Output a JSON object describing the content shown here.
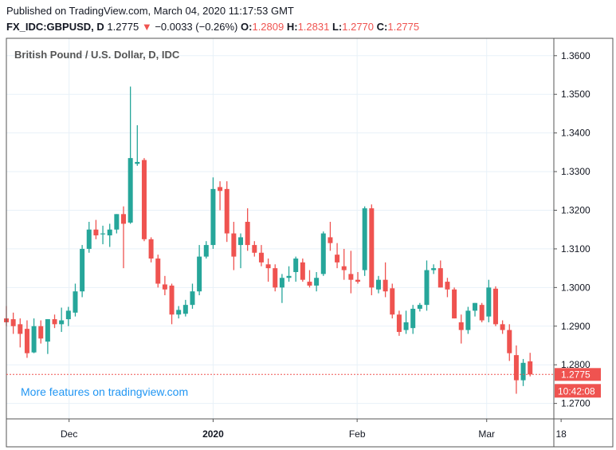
{
  "header": {
    "published": "Published on TradingView.com, March 04, 2020 11:17:53 GMT",
    "symbol": "FX_IDC:GBPUSD, D",
    "last": "1.2775",
    "arrow": "▼",
    "change": "−0.0033 (−0.26%)",
    "o_label": "O:",
    "o_value": "1.2809",
    "h_label": "H:",
    "h_value": "1.2831",
    "l_label": "L:",
    "l_value": "1.2770",
    "c_label": "C:",
    "c_value": "1.2775"
  },
  "chart_title": "British Pound / U.S. Dollar, D, IDC",
  "footer_link": "More features on tradingview.com",
  "colors": {
    "up": "#26a69a",
    "down": "#ef5350",
    "grid": "#e8f1f8",
    "axis": "#555555",
    "text": "#131722",
    "link": "#2196f3"
  },
  "chart_data": {
    "type": "candlestick",
    "title": "British Pound / U.S. Dollar, D, IDC",
    "ylim": [
      1.266,
      1.3645
    ],
    "xlim": [
      0,
      69.5
    ],
    "y_ticks": [
      "1.2700",
      "1.2800",
      "1.2900",
      "1.3000",
      "1.3100",
      "1.3200",
      "1.3300",
      "1.3400",
      "1.3500",
      "1.3600"
    ],
    "x_ticks": [
      {
        "label": "Dec",
        "x": 9.1
      },
      {
        "label": "2020",
        "x": 30.0
      },
      {
        "label": "Feb",
        "x": 50.9
      },
      {
        "label": "Mar",
        "x": 69.7
      },
      {
        "label": "18",
        "x": 80.5
      }
    ],
    "price_label": "1.2775",
    "countdown_label": "10:42:08",
    "last_price": 1.2775,
    "grid": true,
    "candles": [
      {
        "o": 1.292,
        "h": 1.2952,
        "l": 1.29,
        "c": 1.291
      },
      {
        "o": 1.2918,
        "h": 1.2935,
        "l": 1.288,
        "c": 1.29
      },
      {
        "o": 1.2905,
        "h": 1.292,
        "l": 1.2845,
        "c": 1.288
      },
      {
        "o": 1.2893,
        "h": 1.2915,
        "l": 1.2818,
        "c": 1.283
      },
      {
        "o": 1.2832,
        "h": 1.292,
        "l": 1.283,
        "c": 1.29
      },
      {
        "o": 1.29,
        "h": 1.2915,
        "l": 1.2855,
        "c": 1.2868
      },
      {
        "o": 1.286,
        "h": 1.2918,
        "l": 1.2828,
        "c": 1.2918
      },
      {
        "o": 1.2918,
        "h": 1.293,
        "l": 1.2895,
        "c": 1.2905
      },
      {
        "o": 1.2905,
        "h": 1.2948,
        "l": 1.2885,
        "c": 1.2915
      },
      {
        "o": 1.2918,
        "h": 1.295,
        "l": 1.29,
        "c": 1.294
      },
      {
        "o": 1.2935,
        "h": 1.301,
        "l": 1.2925,
        "c": 1.299
      },
      {
        "o": 1.299,
        "h": 1.311,
        "l": 1.2975,
        "c": 1.31
      },
      {
        "o": 1.31,
        "h": 1.317,
        "l": 1.309,
        "c": 1.315
      },
      {
        "o": 1.315,
        "h": 1.3175,
        "l": 1.3125,
        "c": 1.3135
      },
      {
        "o": 1.3138,
        "h": 1.316,
        "l": 1.3112,
        "c": 1.314
      },
      {
        "o": 1.3135,
        "h": 1.3165,
        "l": 1.3105,
        "c": 1.315
      },
      {
        "o": 1.315,
        "h": 1.319,
        "l": 1.314,
        "c": 1.319
      },
      {
        "o": 1.319,
        "h": 1.321,
        "l": 1.305,
        "c": 1.3165
      },
      {
        "o": 1.3168,
        "h": 1.352,
        "l": 1.3165,
        "c": 1.3335
      },
      {
        "o": 1.332,
        "h": 1.342,
        "l": 1.3315,
        "c": 1.3325
      },
      {
        "o": 1.333,
        "h": 1.3335,
        "l": 1.312,
        "c": 1.3125
      },
      {
        "o": 1.3125,
        "h": 1.313,
        "l": 1.3065,
        "c": 1.3075
      },
      {
        "o": 1.3075,
        "h": 1.3085,
        "l": 1.3,
        "c": 1.301
      },
      {
        "o": 1.3008,
        "h": 1.303,
        "l": 1.298,
        "c": 1.2995
      },
      {
        "o": 1.3005,
        "h": 1.301,
        "l": 1.2905,
        "c": 1.293
      },
      {
        "o": 1.293,
        "h": 1.2952,
        "l": 1.292,
        "c": 1.2942
      },
      {
        "o": 1.2932,
        "h": 1.2968,
        "l": 1.2925,
        "c": 1.2955
      },
      {
        "o": 1.2955,
        "h": 1.301,
        "l": 1.2945,
        "c": 1.299
      },
      {
        "o": 1.299,
        "h": 1.311,
        "l": 1.298,
        "c": 1.308
      },
      {
        "o": 1.308,
        "h": 1.312,
        "l": 1.3075,
        "c": 1.311
      },
      {
        "o": 1.311,
        "h": 1.3285,
        "l": 1.31,
        "c": 1.3255
      },
      {
        "o": 1.326,
        "h": 1.3275,
        "l": 1.32,
        "c": 1.325
      },
      {
        "o": 1.3255,
        "h": 1.3275,
        "l": 1.3118,
        "c": 1.314
      },
      {
        "o": 1.314,
        "h": 1.317,
        "l": 1.3045,
        "c": 1.308
      },
      {
        "o": 1.311,
        "h": 1.314,
        "l": 1.305,
        "c": 1.313
      },
      {
        "o": 1.317,
        "h": 1.3205,
        "l": 1.3095,
        "c": 1.311
      },
      {
        "o": 1.311,
        "h": 1.312,
        "l": 1.308,
        "c": 1.309
      },
      {
        "o": 1.309,
        "h": 1.311,
        "l": 1.3055,
        "c": 1.3065
      },
      {
        "o": 1.306,
        "h": 1.3075,
        "l": 1.3015,
        "c": 1.305
      },
      {
        "o": 1.305,
        "h": 1.306,
        "l": 1.299,
        "c": 1.3
      },
      {
        "o": 1.3,
        "h": 1.3035,
        "l": 1.296,
        "c": 1.3025
      },
      {
        "o": 1.3025,
        "h": 1.3055,
        "l": 1.3015,
        "c": 1.303
      },
      {
        "o": 1.304,
        "h": 1.308,
        "l": 1.3015,
        "c": 1.3075
      },
      {
        "o": 1.3065,
        "h": 1.3075,
        "l": 1.3015,
        "c": 1.302
      },
      {
        "o": 1.3015,
        "h": 1.3045,
        "l": 1.3,
        "c": 1.3005
      },
      {
        "o": 1.3005,
        "h": 1.304,
        "l": 1.299,
        "c": 1.3025
      },
      {
        "o": 1.3035,
        "h": 1.3145,
        "l": 1.303,
        "c": 1.314
      },
      {
        "o": 1.313,
        "h": 1.317,
        "l": 1.3095,
        "c": 1.3115
      },
      {
        "o": 1.3085,
        "h": 1.3115,
        "l": 1.305,
        "c": 1.3065
      },
      {
        "o": 1.3055,
        "h": 1.31,
        "l": 1.302,
        "c": 1.3045
      },
      {
        "o": 1.3035,
        "h": 1.3095,
        "l": 1.2985,
        "c": 1.302
      },
      {
        "o": 1.302,
        "h": 1.304,
        "l": 1.301,
        "c": 1.3015
      },
      {
        "o": 1.3045,
        "h": 1.321,
        "l": 1.303,
        "c": 1.3205
      },
      {
        "o": 1.3205,
        "h": 1.3215,
        "l": 1.298,
        "c": 1.3
      },
      {
        "o": 1.2995,
        "h": 1.303,
        "l": 1.2985,
        "c": 1.302
      },
      {
        "o": 1.302,
        "h": 1.3065,
        "l": 1.2975,
        "c": 1.299
      },
      {
        "o": 1.2998,
        "h": 1.301,
        "l": 1.292,
        "c": 1.293
      },
      {
        "o": 1.293,
        "h": 1.294,
        "l": 1.2875,
        "c": 1.2885
      },
      {
        "o": 1.289,
        "h": 1.294,
        "l": 1.288,
        "c": 1.291
      },
      {
        "o": 1.2895,
        "h": 1.2955,
        "l": 1.288,
        "c": 1.2945
      },
      {
        "o": 1.2945,
        "h": 1.296,
        "l": 1.2938,
        "c": 1.2955
      },
      {
        "o": 1.2955,
        "h": 1.307,
        "l": 1.294,
        "c": 1.3045
      },
      {
        "o": 1.3045,
        "h": 1.306,
        "l": 1.3035,
        "c": 1.305
      },
      {
        "o": 1.305,
        "h": 1.307,
        "l": 1.3,
        "c": 1.3
      },
      {
        "o": 1.3015,
        "h": 1.3025,
        "l": 1.2975,
        "c": 1.2995
      },
      {
        "o": 1.2995,
        "h": 1.3,
        "l": 1.292,
        "c": 1.292
      },
      {
        "o": 1.291,
        "h": 1.293,
        "l": 1.2855,
        "c": 1.289
      },
      {
        "o": 1.289,
        "h": 1.295,
        "l": 1.288,
        "c": 1.294
      },
      {
        "o": 1.294,
        "h": 1.296,
        "l": 1.2925,
        "c": 1.296
      },
      {
        "o": 1.2955,
        "h": 1.296,
        "l": 1.291,
        "c": 1.2915
      },
      {
        "o": 1.2925,
        "h": 1.302,
        "l": 1.291,
        "c": 1.3
      },
      {
        "o": 1.2997,
        "h": 1.3003,
        "l": 1.29,
        "c": 1.2905
      },
      {
        "o": 1.2905,
        "h": 1.2915,
        "l": 1.288,
        "c": 1.289
      },
      {
        "o": 1.289,
        "h": 1.2905,
        "l": 1.281,
        "c": 1.283
      },
      {
        "o": 1.2825,
        "h": 1.285,
        "l": 1.2725,
        "c": 1.276
      },
      {
        "o": 1.276,
        "h": 1.2815,
        "l": 1.2745,
        "c": 1.2805
      },
      {
        "o": 1.2809,
        "h": 1.2831,
        "l": 1.277,
        "c": 1.2775
      }
    ]
  }
}
